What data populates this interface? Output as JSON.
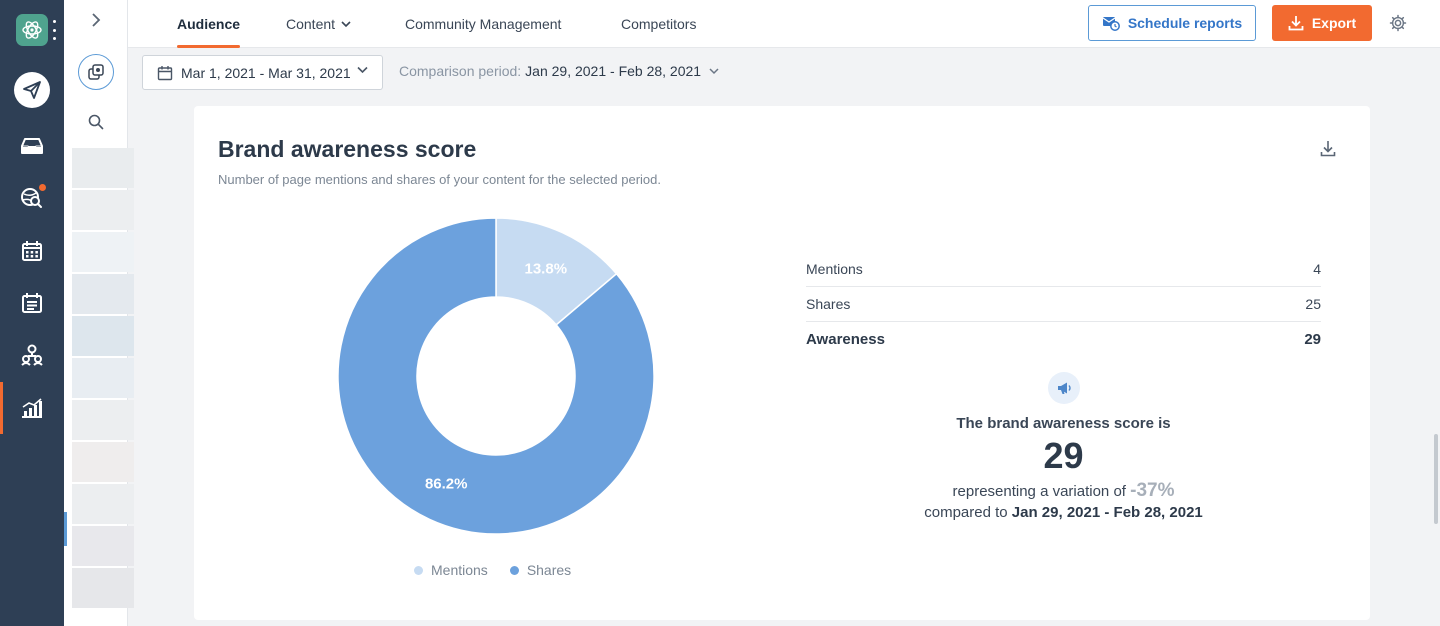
{
  "tabs": [
    {
      "label": "Audience",
      "active": true
    },
    {
      "label": "Content",
      "has_dropdown": true
    },
    {
      "label": "Community Management"
    },
    {
      "label": "Competitors"
    }
  ],
  "actions": {
    "schedule_label": "Schedule reports",
    "export_label": "Export"
  },
  "filters": {
    "date_range": "Mar 1, 2021 - Mar 31, 2021",
    "comparison_label": "Comparison period:",
    "comparison_value": "Jan 29, 2021 - Feb 28, 2021"
  },
  "card": {
    "title": "Brand awareness score",
    "subtitle": "Number of page mentions and shares of your content for the selected period."
  },
  "metrics": [
    {
      "label": "Mentions",
      "value": "4"
    },
    {
      "label": "Shares",
      "value": "25"
    },
    {
      "label": "Awareness",
      "value": "29"
    }
  ],
  "summary": {
    "heading": "The brand awareness score is",
    "score": "29",
    "variation_prefix": "representing a variation of",
    "variation_value": "-37%",
    "compared_prefix": "compared to",
    "compared_period": "Jan 29, 2021 - Feb 28, 2021"
  },
  "colors": {
    "accent": "#f26a30",
    "primary_blue": "#3476c8",
    "mentions_color": "#c6dbf2",
    "shares_color": "#6ca1dd"
  },
  "chart_data": {
    "type": "pie",
    "donut": true,
    "categories": [
      "Mentions",
      "Shares"
    ],
    "values": [
      13.8,
      86.2
    ],
    "labels": [
      "13.8%",
      "86.2%"
    ],
    "legend": "bottom"
  }
}
